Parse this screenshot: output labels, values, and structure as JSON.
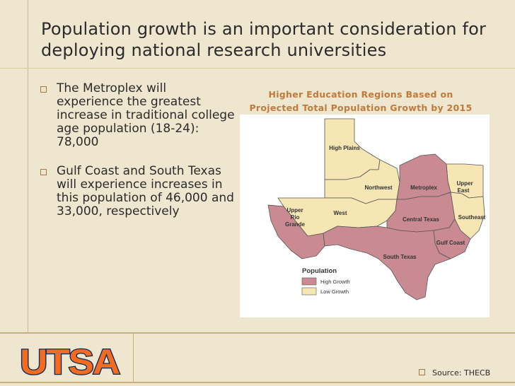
{
  "slide": {
    "title": "Population growth is an important consideration for deploying national research universities",
    "bullets": [
      {
        "text": "The Metroplex will experience the greatest increase in traditional college age population (18-24): 78,000"
      },
      {
        "text": "Gulf Coast and South Texas will experience increases in this population of 46,000 and 33,000, respectively"
      }
    ]
  },
  "map": {
    "title_line1": "Higher Education Regions Based on",
    "title_line2": "Projected Total Population Growth by 2015",
    "regions": {
      "high_plains": "High Plains",
      "northwest": "Northwest",
      "metroplex": "Metroplex",
      "upper_east_1": "Upper",
      "upper_east_2": "East",
      "upper_rio_1": "Upper",
      "upper_rio_2": "Rio",
      "upper_rio_3": "Grande",
      "west": "West",
      "central_texas": "Central Texas",
      "southeast": "Southeast",
      "gulf_coast": "Gulf Coast",
      "south_texas": "South Texas"
    },
    "legend": {
      "title": "Population",
      "high": "High Growth",
      "low": "Low Growth"
    },
    "colors": {
      "high": "#c98b91",
      "low": "#f6e6b4",
      "border": "#555555"
    }
  },
  "footer": {
    "logo_text": "UTSA",
    "source": "Source: THECB"
  }
}
